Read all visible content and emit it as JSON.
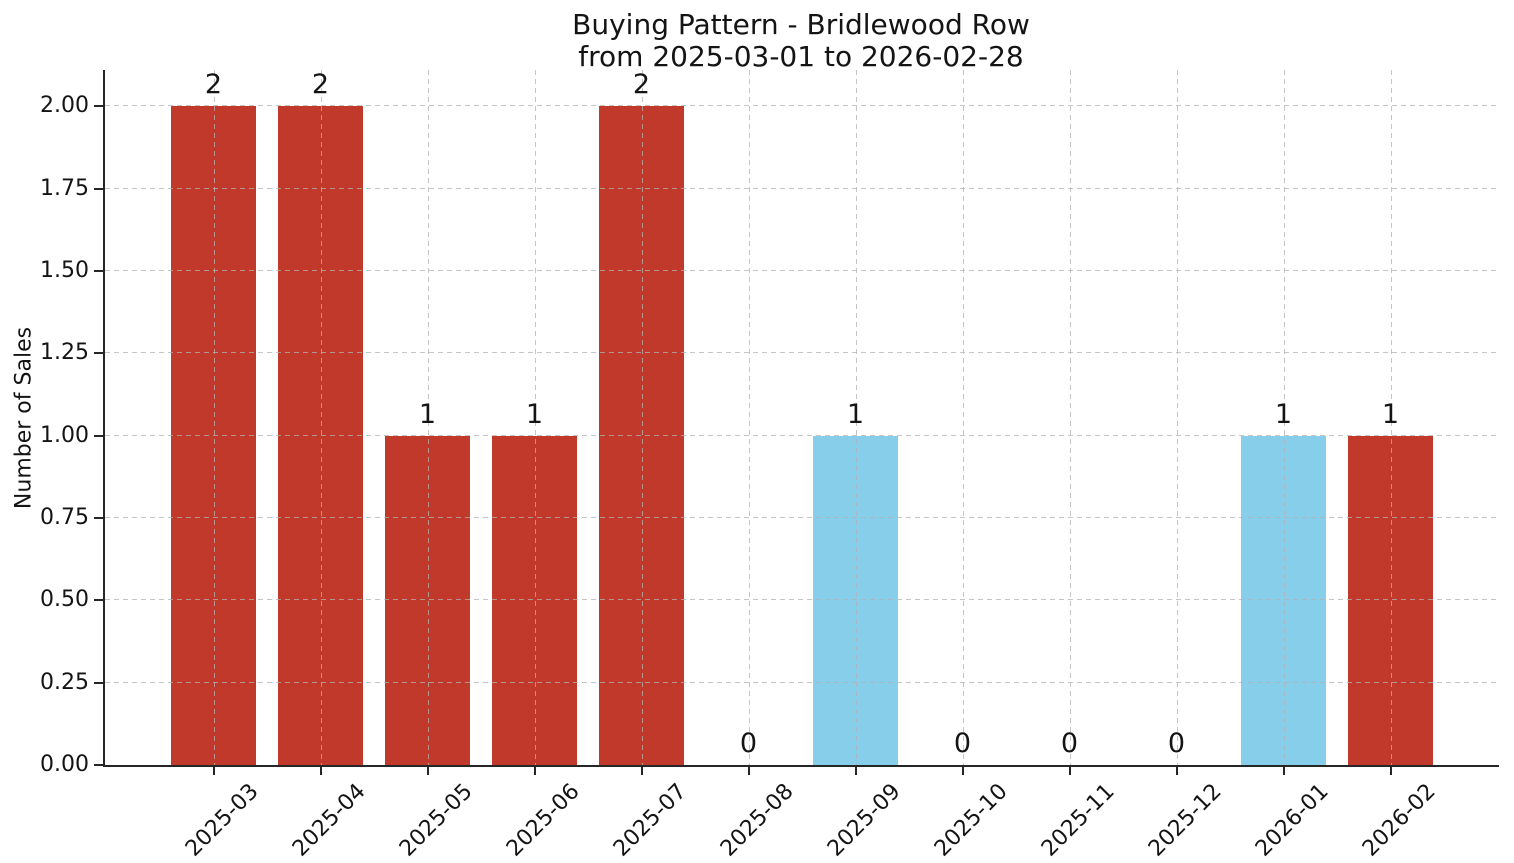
{
  "chart_data": {
    "type": "bar",
    "title": "Buying Pattern - Bridlewood Row",
    "subtitle": "from 2025-03-01 to 2026-02-28",
    "ylabel": "Number of Sales",
    "xlabel": "",
    "categories": [
      "2025-03",
      "2025-04",
      "2025-05",
      "2025-06",
      "2025-07",
      "2025-08",
      "2025-09",
      "2025-10",
      "2025-11",
      "2025-12",
      "2026-01",
      "2026-02"
    ],
    "values": [
      2,
      2,
      1,
      1,
      2,
      0,
      1,
      0,
      0,
      0,
      1,
      1
    ],
    "value_labels": [
      "2",
      "2",
      "1",
      "1",
      "2",
      "0",
      "1",
      "0",
      "0",
      "0",
      "1",
      "1"
    ],
    "bar_colors": [
      "#c0392b",
      "#c0392b",
      "#c0392b",
      "#c0392b",
      "#c0392b",
      null,
      "#87ceeb",
      null,
      null,
      null,
      "#87ceeb",
      "#c0392b"
    ],
    "ytick_values": [
      0,
      0.25,
      0.5,
      0.75,
      1.0,
      1.25,
      1.5,
      1.75,
      2.0
    ],
    "ytick_labels": [
      "0.00",
      "0.25",
      "0.50",
      "0.75",
      "1.00",
      "1.25",
      "1.50",
      "1.75",
      "2.00"
    ],
    "ylim": [
      0,
      2.11
    ],
    "grid": {
      "visible": true,
      "linestyle": "dashed",
      "over_bars": true
    },
    "legend": "none",
    "bar_width_fraction": 0.8
  },
  "colors": {
    "bar_red": "#c0392b",
    "bar_blue": "#87ceeb",
    "grid": "#cccccc",
    "axis": "#262626",
    "text": "#141414",
    "background": "#ffffff"
  }
}
